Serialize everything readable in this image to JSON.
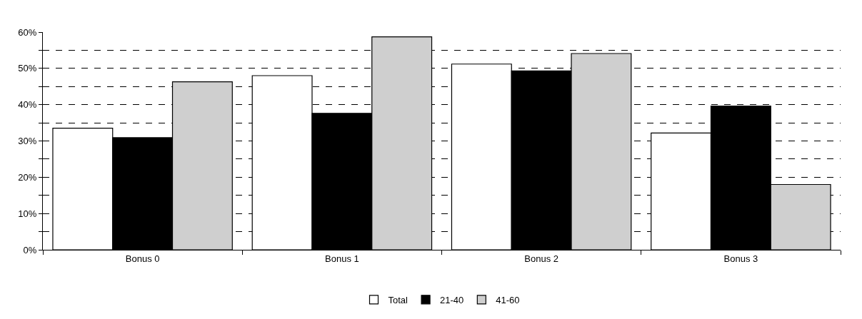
{
  "chart_data": {
    "type": "bar",
    "categories": [
      "Bonus 0",
      "Bonus 1",
      "Bonus 2",
      "Bonus 3"
    ],
    "series": [
      {
        "name": "Total",
        "color": "#ffffff",
        "values": [
          33.5,
          48.0,
          51.2,
          32.2
        ]
      },
      {
        "name": "21-40",
        "color": "#000000",
        "values": [
          30.9,
          37.6,
          49.3,
          39.6
        ]
      },
      {
        "name": "41-60",
        "color": "#cfcfcf",
        "values": [
          46.3,
          58.7,
          54.1,
          18.0
        ]
      }
    ],
    "ylim": [
      0,
      60
    ],
    "yticks": [
      {
        "value": 0,
        "label": "0%"
      },
      {
        "value": 5,
        "label": null
      },
      {
        "value": 10,
        "label": "10%"
      },
      {
        "value": 15,
        "label": null
      },
      {
        "value": 20,
        "label": "20%"
      },
      {
        "value": 25,
        "label": null
      },
      {
        "value": 30,
        "label": "30%"
      },
      {
        "value": 35,
        "label": null
      },
      {
        "value": 40,
        "label": "40%"
      },
      {
        "value": 45,
        "label": null
      },
      {
        "value": 50,
        "label": "50%"
      },
      {
        "value": 55,
        "label": null
      },
      {
        "value": 60,
        "label": "60%"
      }
    ],
    "grid": "y",
    "legend": "bottom"
  }
}
